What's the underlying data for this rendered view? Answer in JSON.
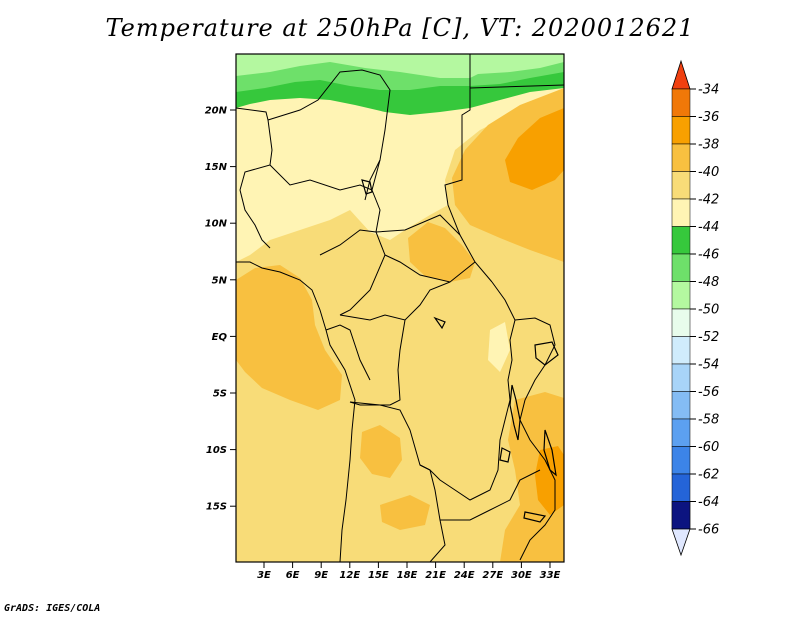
{
  "title": "Temperature at 250hPa [C], VT: 2020012621",
  "credit": "GrADS: IGES/COLA",
  "map": {
    "lat_labels": [
      "20N",
      "15N",
      "10N",
      "5N",
      "EQ",
      "5S",
      "10S",
      "15S"
    ],
    "lon_labels": [
      "3E",
      "6E",
      "9E",
      "12E",
      "15E",
      "18E",
      "21E",
      "24E",
      "27E",
      "30E",
      "33E"
    ],
    "field_colors": {
      "m34": "#f07808",
      "m36": "#f8a000",
      "m38": "#f8c040",
      "m40": "#f8dc78",
      "m42": "#fff4b4",
      "m44": "#36c83c",
      "m46": "#6ee06a",
      "m48": "#b4f8a0"
    }
  },
  "colorbar": {
    "labels": [
      "-34",
      "-36",
      "-38",
      "-40",
      "-42",
      "-44",
      "-46",
      "-48",
      "-50",
      "-52",
      "-54",
      "-56",
      "-58",
      "-60",
      "-62",
      "-64",
      "-66"
    ],
    "colors": [
      "#f07808",
      "#f8a000",
      "#f8c040",
      "#f8dc78",
      "#fff4b4",
      "#36c83c",
      "#6ee06a",
      "#b4f8a0",
      "#e8fcec",
      "#d0ecfc",
      "#a8d4f8",
      "#84bcf4",
      "#5ca0f0",
      "#3c84e8",
      "#2464d8",
      "#1448b0",
      "#0c1480"
    ],
    "top_color": "#f04010",
    "bottom_color": "#e0e8ff"
  }
}
